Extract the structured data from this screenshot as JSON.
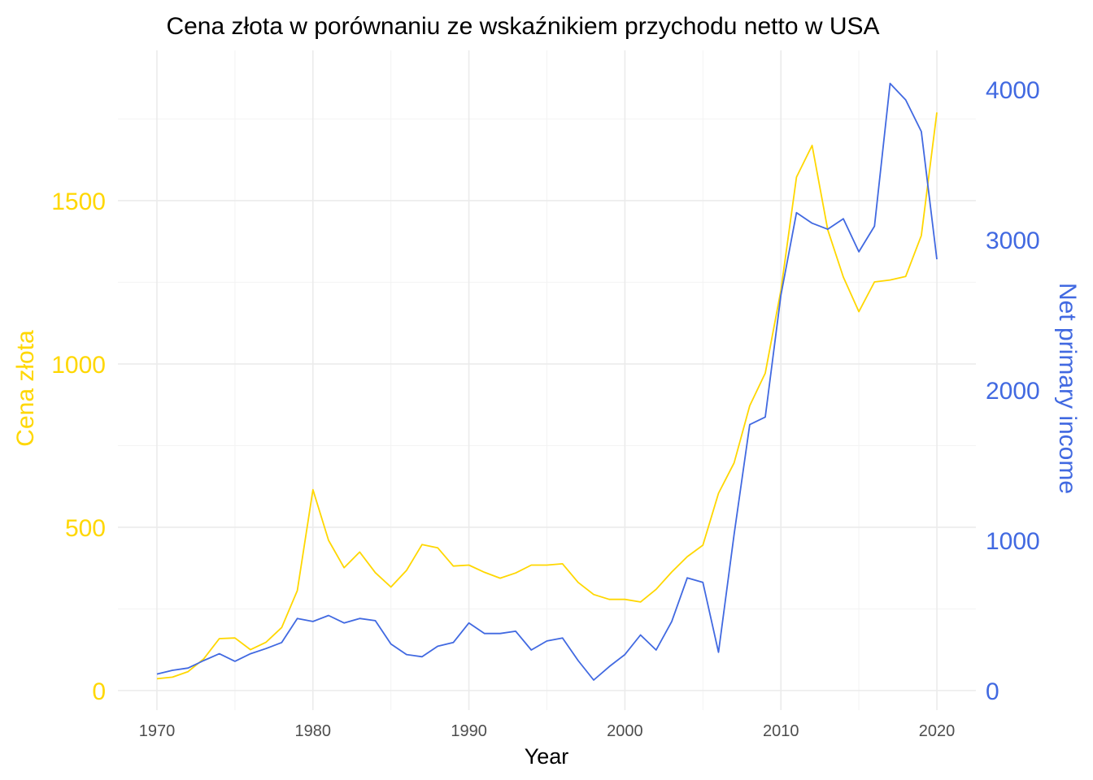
{
  "chart_data": {
    "type": "line",
    "title": "Cena złota w porównaniu ze wskaźnikiem przychodu netto w USA",
    "xlabel": "Year",
    "ylabel_left": "Cena złota",
    "ylabel_right": "Net primary income",
    "xlim": [
      1967.5,
      2022.5
    ],
    "x_ticks": [
      1970,
      1980,
      1990,
      2000,
      2010,
      2020
    ],
    "ylim_left": [
      -60,
      1960
    ],
    "y_ticks_left": [
      0,
      500,
      1000,
      1500
    ],
    "ylim_right": [
      -130,
      4260
    ],
    "y_ticks_right": [
      0,
      1000,
      2000,
      3000,
      4000
    ],
    "grid": true,
    "colors": {
      "gold": "#FFD700",
      "income": "#4169E1"
    },
    "x": [
      1970,
      1971,
      1972,
      1973,
      1974,
      1975,
      1976,
      1977,
      1978,
      1979,
      1980,
      1981,
      1982,
      1983,
      1984,
      1985,
      1986,
      1987,
      1988,
      1989,
      1990,
      1991,
      1992,
      1993,
      1994,
      1995,
      1996,
      1997,
      1998,
      1999,
      2000,
      2001,
      2002,
      2003,
      2004,
      2005,
      2006,
      2007,
      2008,
      2009,
      2010,
      2011,
      2012,
      2013,
      2014,
      2015,
      2016,
      2017,
      2018,
      2019,
      2020
    ],
    "series": [
      {
        "name": "Cena złota",
        "axis": "left",
        "values": [
          36,
          41,
          58,
          97,
          159,
          161,
          125,
          148,
          193,
          306,
          615,
          460,
          376,
          424,
          361,
          317,
          368,
          447,
          437,
          381,
          384,
          362,
          344,
          360,
          384,
          384,
          388,
          331,
          294,
          279,
          279,
          271,
          310,
          363,
          410,
          445,
          604,
          697,
          872,
          972,
          1225,
          1572,
          1669,
          1411,
          1266,
          1160,
          1251,
          1257,
          1268,
          1393,
          1770
        ]
      },
      {
        "name": "Net primary income",
        "axis": "right",
        "values": [
          110,
          135,
          150,
          200,
          245,
          195,
          245,
          280,
          320,
          480,
          460,
          500,
          450,
          480,
          465,
          310,
          240,
          225,
          295,
          320,
          450,
          380,
          380,
          395,
          270,
          330,
          350,
          200,
          70,
          160,
          240,
          370,
          270,
          460,
          750,
          720,
          255,
          1040,
          1770,
          1820,
          2630,
          3180,
          3110,
          3070,
          3140,
          2920,
          3090,
          4040,
          3930,
          3720,
          2870
        ]
      }
    ]
  }
}
